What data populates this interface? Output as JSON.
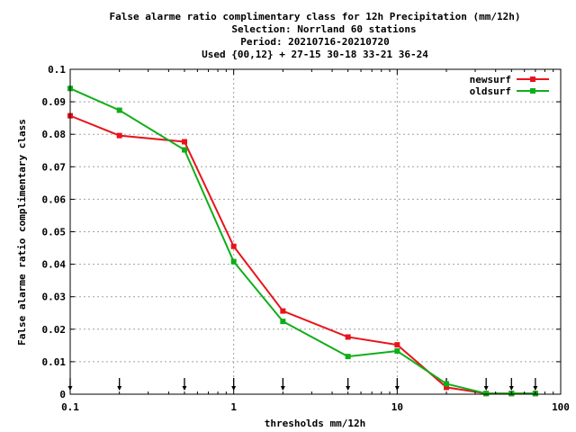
{
  "title_lines": [
    "False alarme ratio complimentary class  for 12h Precipitation (mm/12h)",
    "Selection: Norrland     60 stations",
    "Period: 20210716-20210720",
    "Used {00,12} + 27-15 30-18 33-21 36-24"
  ],
  "chart_data": {
    "type": "line",
    "title": "False alarme ratio complimentary class  for 12h Precipitation (mm/12h)",
    "xlabel": "thresholds mm/12h",
    "ylabel": "False alarme ratio complimentary class",
    "x_scale": "log",
    "xlim": [
      0.1,
      100
    ],
    "ylim": [
      0,
      0.1
    ],
    "grid": true,
    "legend_position": "top-right",
    "x_ticks": [
      0.1,
      1,
      10,
      100
    ],
    "x_tick_labels": [
      "0.1",
      "1",
      "10",
      "100"
    ],
    "y_ticks": [
      0,
      0.01,
      0.02,
      0.03,
      0.04,
      0.05,
      0.06,
      0.07,
      0.08,
      0.09,
      0.1
    ],
    "y_tick_labels": [
      "0",
      "0.01",
      "0.02",
      "0.03",
      "0.04",
      "0.05",
      "0.06",
      "0.07",
      "0.08",
      "0.09",
      "0.1"
    ],
    "threshold_markers": [
      0.1,
      0.2,
      0.5,
      1,
      2,
      5,
      10,
      20,
      35,
      50,
      70
    ],
    "series": [
      {
        "name": "newsurf",
        "color": "#e8141b",
        "x": [
          0.1,
          0.2,
          0.5,
          1,
          2,
          5,
          10,
          20,
          35,
          50,
          70
        ],
        "values": [
          0.0857,
          0.0796,
          0.0777,
          0.0455,
          0.0256,
          0.0176,
          0.0152,
          0.0021,
          0.0002,
          0.0002,
          0.0002
        ]
      },
      {
        "name": "oldsurf",
        "color": "#0fae19",
        "x": [
          0.1,
          0.2,
          0.5,
          1,
          2,
          5,
          10,
          20,
          35,
          50,
          70
        ],
        "values": [
          0.0941,
          0.0874,
          0.0752,
          0.0408,
          0.0224,
          0.0116,
          0.0133,
          0.0032,
          0.0002,
          0.0002,
          0.0002
        ]
      }
    ]
  }
}
